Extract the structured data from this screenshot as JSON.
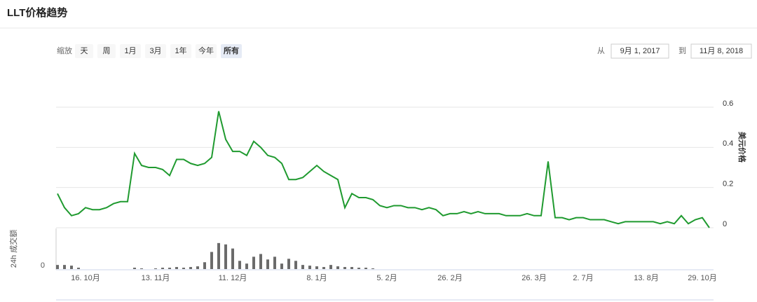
{
  "header": {
    "title": "LLT价格趋势"
  },
  "controls": {
    "zoom_label": "缩放",
    "zoom_buttons": [
      "天",
      "周",
      "1月",
      "3月",
      "1年",
      "今年",
      "所有"
    ],
    "active_zoom": 6,
    "from_label": "从",
    "from": "9月 1, 2017",
    "to_label": "到",
    "to": "11月 8, 2018"
  },
  "chart_data": [
    {
      "type": "line",
      "ylabel": "美元价格",
      "categories": [
        null,
        null,
        null,
        null,
        "16. 10月",
        null,
        null,
        null,
        null,
        null,
        null,
        null,
        null,
        null,
        "13. 11月",
        null,
        null,
        null,
        null,
        null,
        null,
        null,
        null,
        null,
        null,
        "11. 12月",
        null,
        null,
        null,
        null,
        null,
        null,
        null,
        null,
        null,
        null,
        null,
        "8. 1月",
        null,
        null,
        null,
        null,
        null,
        null,
        null,
        null,
        null,
        "5. 2月",
        null,
        null,
        null,
        null,
        null,
        null,
        null,
        null,
        "26. 2月",
        null,
        null,
        null,
        null,
        null,
        null,
        null,
        null,
        null,
        null,
        null,
        "26. 3月",
        null,
        null,
        null,
        null,
        null,
        null,
        "2. 7月",
        null,
        null,
        null,
        null,
        null,
        null,
        null,
        null,
        "13. 8月",
        null,
        null,
        null,
        null,
        null,
        null,
        null,
        "29. 10月",
        null
      ],
      "series": [
        {
          "name": "美元价格",
          "color": "#1f9a2f",
          "values": [
            0.17,
            0.1,
            0.06,
            0.07,
            0.1,
            0.09,
            0.09,
            0.1,
            0.12,
            0.13,
            0.13,
            0.37,
            0.31,
            0.3,
            0.3,
            0.29,
            0.26,
            0.34,
            0.34,
            0.32,
            0.31,
            0.32,
            0.35,
            0.58,
            0.44,
            0.38,
            0.38,
            0.36,
            0.43,
            0.4,
            0.36,
            0.35,
            0.32,
            0.24,
            0.24,
            0.25,
            0.28,
            0.31,
            0.28,
            0.26,
            0.24,
            0.1,
            0.17,
            0.15,
            0.15,
            0.14,
            0.11,
            0.1,
            0.11,
            0.11,
            0.1,
            0.1,
            0.09,
            0.1,
            0.09,
            0.06,
            0.07,
            0.07,
            0.08,
            0.07,
            0.08,
            0.07,
            0.07,
            0.07,
            0.06,
            0.06,
            0.06,
            0.07,
            0.06,
            0.06,
            0.33,
            0.05,
            0.05,
            0.04,
            0.05,
            0.05,
            0.04,
            0.04,
            0.04,
            0.03,
            0.02,
            0.03,
            0.03,
            0.03,
            0.03,
            0.03,
            0.02,
            0.03,
            0.02,
            0.06,
            0.02,
            0.04,
            0.05,
            0.0
          ]
        }
      ],
      "ylim": [
        0,
        0.6
      ],
      "yticks": [
        0,
        0.2,
        0.4,
        0.6
      ],
      "grid": true
    },
    {
      "type": "bar",
      "ylabel": "24h 成交额",
      "color": "#6b6b6b",
      "values": [
        6,
        6,
        5,
        2,
        0,
        0,
        0,
        0,
        0,
        0,
        0,
        2,
        1,
        0,
        1,
        2,
        2,
        3,
        2,
        3,
        4,
        10,
        25,
        38,
        36,
        30,
        12,
        8,
        18,
        22,
        14,
        18,
        8,
        15,
        12,
        6,
        5,
        4,
        3,
        6,
        4,
        3,
        3,
        2,
        2,
        1,
        0,
        0,
        0,
        0,
        0,
        0,
        0,
        0,
        0,
        0,
        0,
        0,
        0,
        0,
        0,
        0,
        0,
        0,
        0,
        0,
        0,
        0,
        0,
        0,
        0,
        0,
        0,
        0,
        0,
        0,
        0,
        0,
        0,
        0,
        0,
        0,
        0,
        0,
        0,
        0,
        0,
        0,
        0,
        0,
        0,
        0,
        0,
        0
      ],
      "ylim": [
        0,
        45
      ],
      "yticks": [
        0
      ]
    }
  ]
}
